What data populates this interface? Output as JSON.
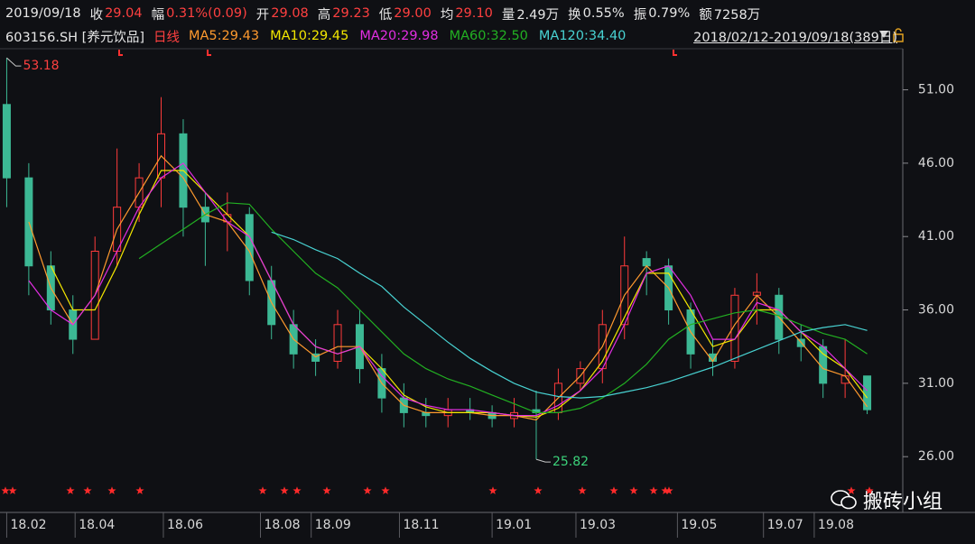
{
  "header": {
    "date": "2019/09/18",
    "fields": [
      {
        "label": "收",
        "value": "29.04",
        "color": "#ff4040"
      },
      {
        "label": "幅",
        "value": "0.31%(0.09)",
        "color": "#ff4040"
      },
      {
        "label": "开",
        "value": "29.08",
        "color": "#ff4040"
      },
      {
        "label": "高",
        "value": "29.23",
        "color": "#ff4040"
      },
      {
        "label": "低",
        "value": "29.00",
        "color": "#ff4040"
      },
      {
        "label": "均",
        "value": "29.10",
        "color": "#ff4040"
      },
      {
        "label": "量",
        "value": "2.49万",
        "color": "#e6e6e6"
      },
      {
        "label": "换",
        "value": "0.55%",
        "color": "#e6e6e6"
      },
      {
        "label": "振",
        "value": "0.79%",
        "color": "#e6e6e6"
      },
      {
        "label": "额",
        "value": "7258万",
        "color": "#e6e6e6"
      }
    ],
    "symbol": "603156.SH [养元饮品]",
    "period": "日线",
    "range": "2018/02/12-2019/09/18(389日)"
  },
  "watermark": "搬砖小组",
  "chart_data": {
    "type": "candlestick",
    "up_color": "#ff3b3b",
    "down_color": "#3cb894",
    "candles": [
      {
        "open": 50,
        "high": 53.18,
        "low": 43,
        "close": 45
      },
      {
        "open": 45,
        "high": 46,
        "low": 37,
        "close": 39
      },
      {
        "open": 39,
        "high": 40,
        "low": 35,
        "close": 36
      },
      {
        "open": 36,
        "high": 37,
        "low": 33,
        "close": 34
      },
      {
        "open": 34,
        "high": 41,
        "low": 34,
        "close": 40
      },
      {
        "open": 40,
        "high": 47,
        "low": 39,
        "close": 43
      },
      {
        "open": 43,
        "high": 46,
        "low": 42,
        "close": 45
      },
      {
        "open": 45,
        "high": 50.5,
        "low": 43,
        "close": 48
      },
      {
        "open": 48,
        "high": 49,
        "low": 41,
        "close": 43
      },
      {
        "open": 43,
        "high": 44,
        "low": 39,
        "close": 42
      },
      {
        "open": 42,
        "high": 44,
        "low": 40,
        "close": 42.5
      },
      {
        "open": 42.5,
        "high": 43,
        "low": 37,
        "close": 38
      },
      {
        "open": 38,
        "high": 39,
        "low": 34,
        "close": 35
      },
      {
        "open": 35,
        "high": 36,
        "low": 32,
        "close": 33
      },
      {
        "open": 33,
        "high": 34,
        "low": 31.5,
        "close": 32.5
      },
      {
        "open": 32.5,
        "high": 36,
        "low": 32,
        "close": 35
      },
      {
        "open": 35,
        "high": 36,
        "low": 31,
        "close": 32
      },
      {
        "open": 32,
        "high": 33,
        "low": 29,
        "close": 30
      },
      {
        "open": 30,
        "high": 31,
        "low": 28,
        "close": 29
      },
      {
        "open": 29,
        "high": 30,
        "low": 28,
        "close": 28.8
      },
      {
        "open": 28.8,
        "high": 30,
        "low": 28,
        "close": 29.2
      },
      {
        "open": 29.2,
        "high": 30,
        "low": 28.5,
        "close": 29
      },
      {
        "open": 29,
        "high": 29.5,
        "low": 28,
        "close": 28.6
      },
      {
        "open": 28.6,
        "high": 30,
        "low": 28,
        "close": 29
      },
      {
        "open": 29.2,
        "high": 30.5,
        "low": 25.82,
        "close": 29
      },
      {
        "open": 29,
        "high": 32,
        "low": 28.5,
        "close": 31
      },
      {
        "open": 31,
        "high": 32.5,
        "low": 30.5,
        "close": 32
      },
      {
        "open": 32,
        "high": 36,
        "low": 31,
        "close": 35
      },
      {
        "open": 35,
        "high": 41,
        "low": 34,
        "close": 39
      },
      {
        "open": 39.5,
        "high": 40,
        "low": 37,
        "close": 39
      },
      {
        "open": 39,
        "high": 39.5,
        "low": 35,
        "close": 36
      },
      {
        "open": 36,
        "high": 36.5,
        "low": 32,
        "close": 33
      },
      {
        "open": 33,
        "high": 34,
        "low": 31.5,
        "close": 32.5
      },
      {
        "open": 32.5,
        "high": 37.5,
        "low": 32,
        "close": 37
      },
      {
        "open": 37,
        "high": 38.5,
        "low": 35,
        "close": 37.2
      },
      {
        "open": 37,
        "high": 37.5,
        "low": 33,
        "close": 34
      },
      {
        "open": 34,
        "high": 35,
        "low": 32.5,
        "close": 33.5
      },
      {
        "open": 33.5,
        "high": 34,
        "low": 30,
        "close": 31
      },
      {
        "open": 31,
        "high": 34,
        "low": 30,
        "close": 31.5
      },
      {
        "open": 31.5,
        "high": 31.5,
        "low": 28.9,
        "close": 29.2
      }
    ],
    "series": [
      {
        "name": "MA5:29.43",
        "color": "#ff9a2e",
        "values": [
          null,
          42,
          37.5,
          35,
          37,
          41.5,
          44,
          46.5,
          45,
          42.5,
          42,
          40,
          36.5,
          34,
          32.8,
          33.5,
          33.5,
          31,
          29.5,
          29,
          29,
          29,
          28.8,
          28.8,
          28.5,
          30,
          31.5,
          33.5,
          37,
          39,
          37.5,
          34.5,
          32.5,
          35,
          37,
          35.5,
          33.8,
          32,
          31.5,
          29.4
        ]
      },
      {
        "name": "MA10:29.45",
        "color": "#f2e600",
        "values": [
          null,
          null,
          39,
          36,
          36,
          39,
          42.5,
          45.5,
          45.5,
          44,
          42.5,
          41,
          38,
          35,
          33.5,
          33,
          33.5,
          32,
          30.2,
          29.4,
          29,
          29,
          29,
          28.8,
          28.7,
          29.3,
          30.5,
          32.5,
          35.5,
          38.5,
          38.5,
          36,
          33.5,
          34,
          36,
          36,
          34.5,
          33,
          32,
          30
        ]
      },
      {
        "name": "MA20:29.98",
        "color": "#e22ee2",
        "values": [
          null,
          38,
          36,
          35,
          37,
          40,
          43,
          45,
          46,
          44,
          42,
          41,
          38,
          35,
          33.5,
          33,
          33.5,
          31.5,
          30,
          29.5,
          29.2,
          29.2,
          29,
          28.8,
          28.8,
          29.5,
          30.5,
          32,
          35,
          38.5,
          39,
          37,
          34,
          34,
          36.5,
          36,
          34.5,
          33.5,
          32,
          30.5
        ]
      },
      {
        "name": "MA60:32.50",
        "color": "#22b022",
        "values": [
          null,
          null,
          null,
          null,
          null,
          null,
          39.5,
          40.5,
          41.5,
          42.5,
          43.3,
          43.2,
          41.5,
          40,
          38.5,
          37.5,
          36,
          34.5,
          33,
          32,
          31.3,
          30.8,
          30.2,
          29.6,
          29,
          29,
          29.3,
          30,
          31,
          32.3,
          34,
          35,
          35.4,
          35.8,
          36,
          35.6,
          35,
          34.4,
          34,
          33
        ]
      },
      {
        "name": "MA120:34.40",
        "color": "#48d2d2",
        "values": [
          null,
          null,
          null,
          null,
          null,
          null,
          null,
          null,
          null,
          null,
          null,
          null,
          41.3,
          40.8,
          40.1,
          39.5,
          38.5,
          37.6,
          36.2,
          35,
          33.8,
          32.7,
          31.8,
          31,
          30.4,
          30.1,
          30,
          30.1,
          30.4,
          30.7,
          31.1,
          31.6,
          32.1,
          32.7,
          33.3,
          33.9,
          34.5,
          34.8,
          35,
          34.6
        ]
      }
    ],
    "xlim": [
      -0.1,
      40
    ],
    "xticks": [
      {
        "value": 0,
        "label": "18.02"
      },
      {
        "value": 3.1,
        "label": "18.04"
      },
      {
        "value": 7.1,
        "label": "18.06"
      },
      {
        "value": 11.5,
        "label": "18.08"
      },
      {
        "value": 13.8,
        "label": "18.09"
      },
      {
        "value": 17.8,
        "label": "18.11"
      },
      {
        "value": 22,
        "label": "19.01"
      },
      {
        "value": 25.8,
        "label": "19.03"
      },
      {
        "value": 30.4,
        "label": "19.05"
      },
      {
        "value": 34.3,
        "label": "19.07"
      },
      {
        "value": 36.6,
        "label": "19.08"
      }
    ],
    "ylim": [
      22.2,
      53.8
    ],
    "yticks": [
      {
        "value": 26,
        "label": "26.00"
      },
      {
        "value": 31,
        "label": "31.00"
      },
      {
        "value": 36,
        "label": "36.00"
      },
      {
        "value": 41,
        "label": "41.00"
      },
      {
        "value": 46,
        "label": "46.00"
      },
      {
        "value": 51,
        "label": "51.00"
      }
    ],
    "annotations": [
      {
        "candle": 0,
        "field": "high",
        "color": "#ff4040"
      },
      {
        "candle": 24,
        "field": "low",
        "color": "#3cd27a"
      }
    ]
  }
}
